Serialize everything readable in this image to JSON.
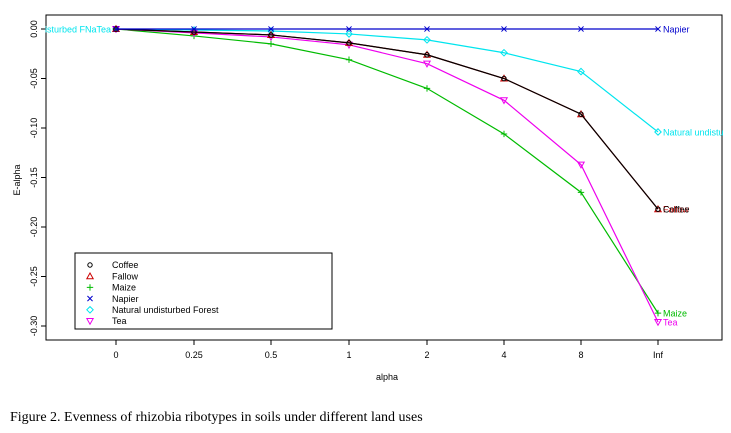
{
  "caption": "Figure 2. Evenness of rhizobia ribotypes in soils under different land uses",
  "chart_data": {
    "type": "line",
    "title": "",
    "xlabel": "alpha",
    "ylabel": "E-alpha",
    "categories": [
      "0",
      "0.25",
      "0.5",
      "1",
      "2",
      "4",
      "8",
      "Inf"
    ],
    "ylim": [
      -0.305,
      0.005
    ],
    "yticks": [
      0.0,
      -0.05,
      -0.1,
      -0.15,
      -0.2,
      -0.25,
      -0.3
    ],
    "ytick_labels": [
      "0.00",
      "-0.05",
      "-0.10",
      "-0.15",
      "-0.20",
      "-0.25",
      "-0.30"
    ],
    "series": [
      {
        "name": "Coffee",
        "color": "#000000",
        "marker": "circle",
        "end_label": "Coffee",
        "values": [
          0,
          -0.003,
          -0.006,
          -0.014,
          -0.026,
          -0.05,
          -0.086,
          -0.182
        ]
      },
      {
        "name": "Fallow",
        "color": "#cc0000",
        "marker": "triangle",
        "end_label": "Fallow",
        "values": [
          0,
          -0.003,
          -0.006,
          -0.014,
          -0.026,
          -0.05,
          -0.086,
          -0.182
        ]
      },
      {
        "name": "Maize",
        "color": "#00bb00",
        "marker": "plus",
        "end_label": "Maize",
        "values": [
          0,
          -0.007,
          -0.015,
          -0.031,
          -0.06,
          -0.106,
          -0.165,
          -0.287
        ]
      },
      {
        "name": "Napier",
        "color": "#0000cc",
        "marker": "cross",
        "end_label": "Napier",
        "values": [
          0,
          0,
          0,
          0,
          0,
          0,
          0,
          0
        ]
      },
      {
        "name": "Natural undisturbed Forest",
        "color": "#00e5ee",
        "marker": "diamond",
        "end_label": "Natural undistu",
        "values": [
          0,
          -0.001,
          -0.002,
          -0.005,
          -0.011,
          -0.024,
          -0.043,
          -0.104
        ]
      },
      {
        "name": "Tea",
        "color": "#ee00ee",
        "marker": "triangle-down",
        "end_label": "Tea",
        "values": [
          0,
          -0.004,
          -0.008,
          -0.016,
          -0.035,
          -0.072,
          -0.137,
          -0.296
        ]
      }
    ],
    "start_label": "isturbed FNaTea",
    "legend_position": "bottom-left"
  }
}
